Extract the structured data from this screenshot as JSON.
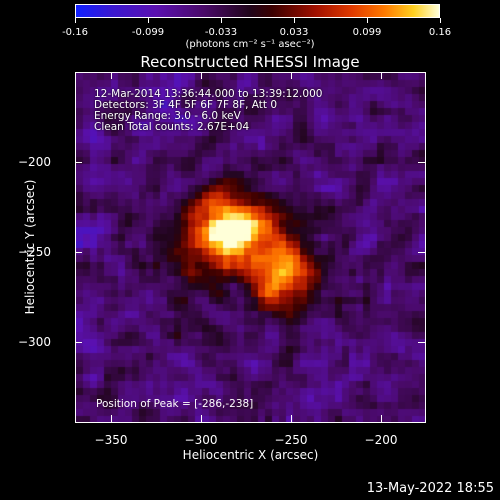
{
  "colorbar": {
    "ticks": [
      "-0.16",
      "-0.099",
      "-0.033",
      "0.033",
      "0.099",
      "0.16"
    ],
    "units": "(photons cm⁻² s⁻¹ asec⁻²)"
  },
  "chart_data": {
    "type": "heatmap",
    "title": "Reconstructed RHESSI Image",
    "xlabel": "Heliocentric X (arcsec)",
    "ylabel": "Heliocentric Y (arcsec)",
    "xlim": [
      -370,
      -175
    ],
    "ylim": [
      -345,
      -150
    ],
    "xticks": [
      "-350",
      "-300",
      "-250",
      "-200"
    ],
    "yticks": [
      "-200",
      "-250",
      "-300"
    ],
    "value_range": [
      -0.16,
      0.16
    ],
    "peak": {
      "x": -286,
      "y": -238,
      "value": 0.16
    },
    "secondary_peak": {
      "x": -255,
      "y": -262,
      "value": 0.11
    },
    "annotations": [
      "12-Mar-2014 13:36:44.000 to 13:39:12.000",
      "Detectors: 3F 4F 5F 6F 7F 8F, Att 0",
      "Energy Range: 3.0 - 6.0 keV",
      "Clean     Total counts: 2.67E+04"
    ],
    "peak_label": "Position of Peak = [-286,-238]"
  },
  "footer_timestamp": "13-May-2022 18:55"
}
